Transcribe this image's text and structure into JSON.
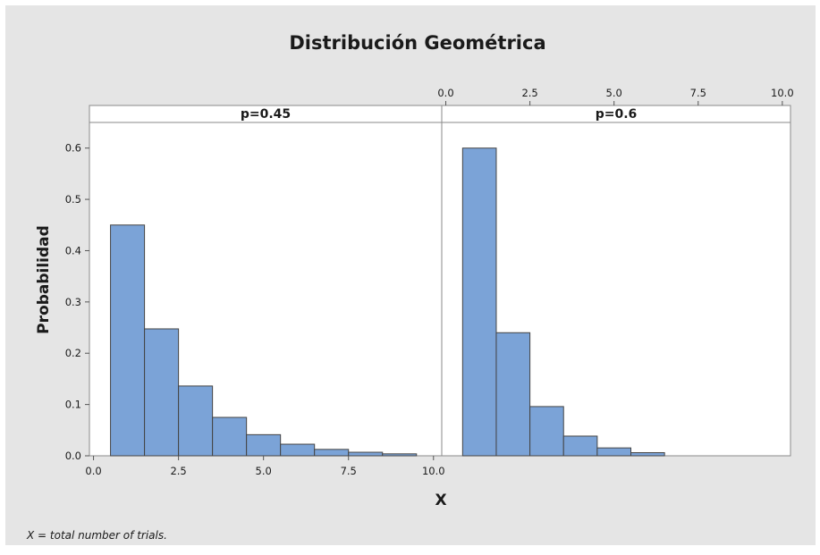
{
  "chart_data": {
    "type": "bar",
    "title": "Distribución Geométrica",
    "xlabel": "X",
    "ylabel": "Probabilidad",
    "footnote": "X = total number of trials.",
    "xlim": [
      0,
      10
    ],
    "ylim": [
      0,
      0.65
    ],
    "x_ticks": [
      "0.0",
      "2.5",
      "5.0",
      "7.5",
      "10.0"
    ],
    "y_ticks": [
      "0.0",
      "0.1",
      "0.2",
      "0.3",
      "0.4",
      "0.5",
      "0.6"
    ],
    "grid": false,
    "bar_width": 1,
    "colors": {
      "background": "#e5e5e5",
      "plot": "#ffffff",
      "bar": "#7ba3d7",
      "bar_edge": "#444444",
      "frame": "#8a8a8a"
    },
    "panels": [
      {
        "label": "p=0.45",
        "x": [
          1,
          2,
          3,
          4,
          5,
          6,
          7,
          8,
          9
        ],
        "values": [
          0.45,
          0.2475,
          0.1361,
          0.0749,
          0.0412,
          0.0226,
          0.0125,
          0.0069,
          0.0038
        ]
      },
      {
        "label": "p=0.6",
        "x": [
          1,
          2,
          3,
          4,
          5,
          6
        ],
        "values": [
          0.6,
          0.24,
          0.096,
          0.0384,
          0.0154,
          0.0061
        ]
      }
    ]
  }
}
